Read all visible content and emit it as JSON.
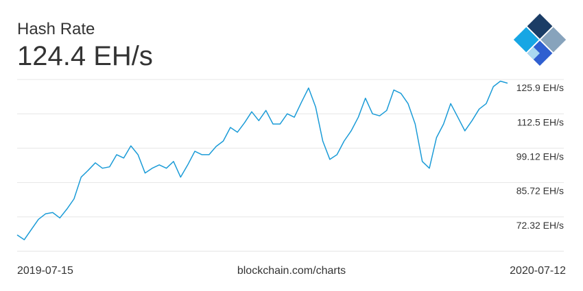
{
  "chart_data": {
    "type": "line",
    "title": "Hash Rate",
    "subtitle": "124.4 EH/s",
    "source": "blockchain.com/charts",
    "color": "#1a9bd7",
    "grid": true,
    "categories": [
      "2019-07-15",
      null,
      null,
      null,
      null,
      null,
      null,
      null,
      null,
      null,
      null,
      null,
      null,
      null,
      null,
      null,
      null,
      null,
      null,
      null,
      null,
      null,
      null,
      null,
      null,
      null,
      null,
      null,
      null,
      null,
      null,
      null,
      null,
      null,
      null,
      null,
      null,
      null,
      null,
      null,
      null,
      null,
      null,
      null,
      null,
      null,
      null,
      null,
      null,
      null,
      null,
      null,
      null,
      null,
      null,
      null,
      null,
      null,
      null,
      null,
      null,
      null,
      null,
      null,
      null,
      null,
      null,
      null,
      null,
      "2020-07-12"
    ],
    "values": [
      65.29,
      63.43,
      67.41,
      71.39,
      73.51,
      74.04,
      71.92,
      75.37,
      79.35,
      87.84,
      90.49,
      93.41,
      91.29,
      91.82,
      96.59,
      95.27,
      100.04,
      96.59,
      89.43,
      91.29,
      92.61,
      91.29,
      93.94,
      87.84,
      92.61,
      97.92,
      96.59,
      96.59,
      99.78,
      101.9,
      107.2,
      105.35,
      109.06,
      113.31,
      109.86,
      113.84,
      108.53,
      108.53,
      112.51,
      111.18,
      117.02,
      122.59,
      115.16,
      101.9,
      94.74,
      96.59,
      101.9,
      105.88,
      111.18,
      118.61,
      112.51,
      111.71,
      113.84,
      121.8,
      120.47,
      116.49,
      108.53,
      93.94,
      91.29,
      103.23,
      108.53,
      116.49,
      111.18,
      105.88,
      109.86,
      114.37,
      116.49,
      123.12,
      125.25,
      124.45
    ],
    "ylim": [
      58.92,
      125.92
    ],
    "yticks": [
      {
        "value": 72.32,
        "label": "72.32 EH/s"
      },
      {
        "value": 85.72,
        "label": "85.72 EH/s"
      },
      {
        "value": 99.12,
        "label": "99.12 EH/s"
      },
      {
        "value": 112.5,
        "label": "112.5 EH/s"
      },
      {
        "value": 125.9,
        "label": "125.9 EH/s"
      }
    ]
  }
}
